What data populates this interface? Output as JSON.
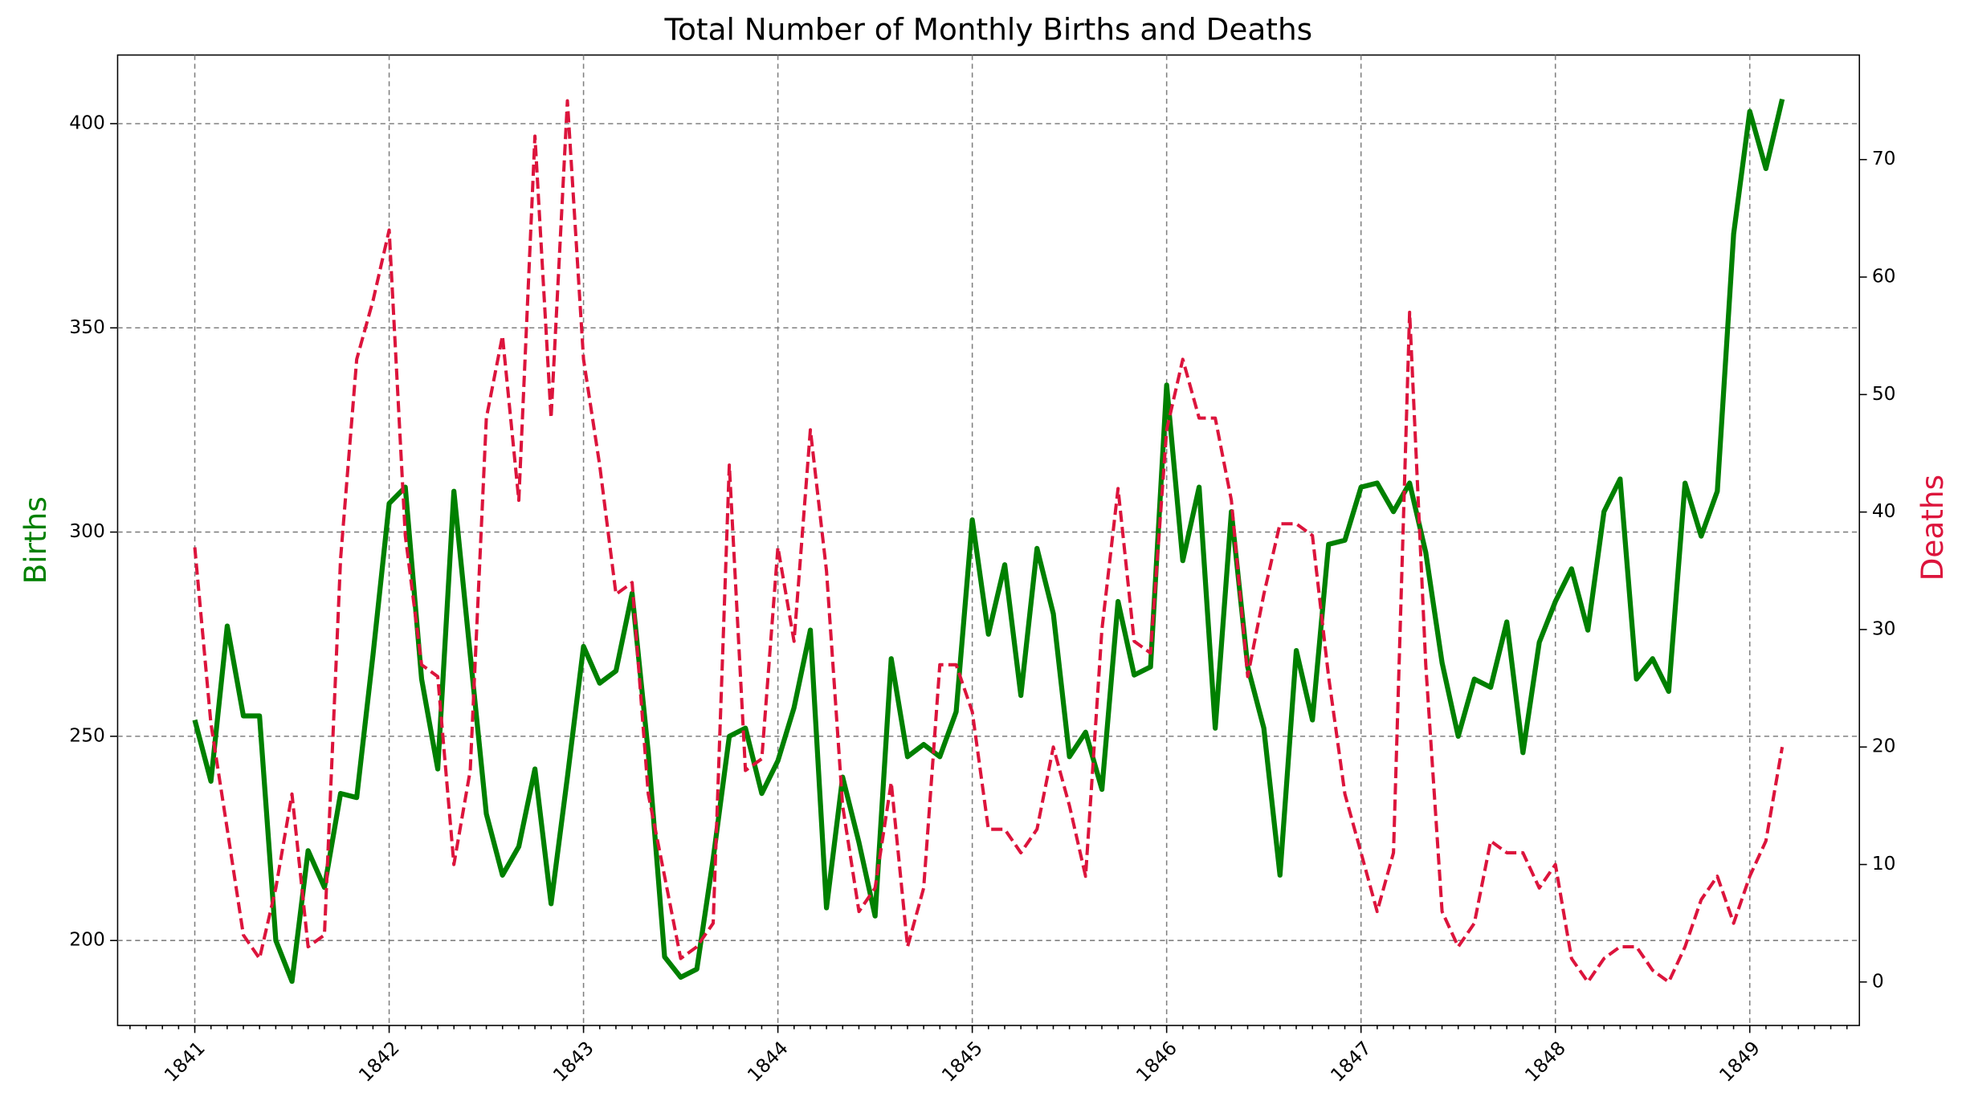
{
  "chart_data": {
    "type": "line",
    "title": "Total Number of Monthly Births and Deaths",
    "ylabel": "Births",
    "y2label": "Deaths",
    "x": [
      1841.0,
      1841.083,
      1841.167,
      1841.25,
      1841.333,
      1841.417,
      1841.5,
      1841.583,
      1841.667,
      1841.75,
      1841.833,
      1841.917,
      1842.0,
      1842.083,
      1842.167,
      1842.25,
      1842.333,
      1842.417,
      1842.5,
      1842.583,
      1842.667,
      1842.75,
      1842.833,
      1842.917,
      1843.0,
      1843.083,
      1843.167,
      1843.25,
      1843.333,
      1843.417,
      1843.5,
      1843.583,
      1843.667,
      1843.75,
      1843.833,
      1843.917,
      1844.0,
      1844.083,
      1844.167,
      1844.25,
      1844.333,
      1844.417,
      1844.5,
      1844.583,
      1844.667,
      1844.75,
      1844.833,
      1844.917,
      1845.0,
      1845.083,
      1845.167,
      1845.25,
      1845.333,
      1845.417,
      1845.5,
      1845.583,
      1845.667,
      1845.75,
      1845.833,
      1845.917,
      1846.0,
      1846.083,
      1846.167,
      1846.25,
      1846.333,
      1846.417,
      1846.5,
      1846.583,
      1846.667,
      1846.75,
      1846.833,
      1846.917,
      1847.0,
      1847.083,
      1847.167,
      1847.25,
      1847.333,
      1847.417,
      1847.5,
      1847.583,
      1847.667,
      1847.75,
      1847.833,
      1847.917,
      1848.0,
      1848.083,
      1848.167,
      1848.25,
      1848.333,
      1848.417,
      1848.5,
      1848.583,
      1848.667,
      1848.75,
      1848.833,
      1848.917,
      1849.0,
      1849.083,
      1849.167
    ],
    "series": [
      {
        "name": "Births",
        "color": "green",
        "axis": "y",
        "dashed": false,
        "values": [
          254,
          239,
          277,
          255,
          255,
          200,
          190,
          222,
          213,
          236,
          235,
          270,
          307,
          311,
          264,
          242,
          310,
          270,
          231,
          216,
          223,
          242,
          209,
          240,
          272,
          263,
          266,
          285,
          246,
          196,
          191,
          193,
          220,
          250,
          252,
          236,
          244,
          257,
          276,
          208,
          240,
          224,
          206,
          269,
          245,
          248,
          245,
          256,
          303,
          275,
          292,
          260,
          296,
          280,
          245,
          251,
          237,
          283,
          265,
          267,
          336,
          293,
          311,
          252,
          305,
          267,
          252,
          216,
          271,
          254,
          297,
          298,
          311,
          312,
          305,
          312,
          295,
          268,
          250,
          264,
          262,
          278,
          246,
          273,
          283,
          291,
          276,
          305,
          313,
          264,
          269,
          261,
          312,
          299,
          310,
          373,
          403,
          389,
          406
        ]
      },
      {
        "name": "Deaths",
        "color": "crimson",
        "axis": "y2",
        "dashed": true,
        "values": [
          37,
          22,
          13,
          4,
          2,
          8,
          16,
          3,
          4,
          36,
          53,
          58,
          64,
          38,
          27,
          26,
          10,
          18,
          48,
          55,
          41,
          72,
          48,
          75,
          53,
          44,
          33,
          34,
          16,
          9,
          2,
          3,
          5,
          44,
          18,
          19,
          37,
          29,
          47,
          35,
          15,
          6,
          8,
          17,
          3,
          8,
          27,
          27,
          23,
          13,
          13,
          11,
          13,
          20,
          15,
          9,
          30,
          42,
          29,
          28,
          47,
          53,
          48,
          48,
          41,
          26,
          33,
          39,
          39,
          38,
          26,
          16,
          11,
          6,
          11,
          57,
          27,
          6,
          3,
          5,
          12,
          11,
          11,
          8,
          10,
          2,
          0,
          2,
          3,
          3,
          1,
          0,
          3,
          7,
          9,
          5,
          9,
          12,
          20
        ]
      }
    ],
    "xlim": [
      1840.603,
      1849.564
    ],
    "xticks": [
      1841,
      1842,
      1843,
      1844,
      1845,
      1846,
      1847,
      1848,
      1849
    ],
    "ylim": [
      179.2,
      416.8
    ],
    "yticks": [
      200,
      250,
      300,
      350,
      400
    ],
    "y2lim": [
      -3.7,
      78.9
    ],
    "y2ticks": [
      0,
      10,
      20,
      30,
      40,
      50,
      60,
      70
    ],
    "grid": true
  }
}
